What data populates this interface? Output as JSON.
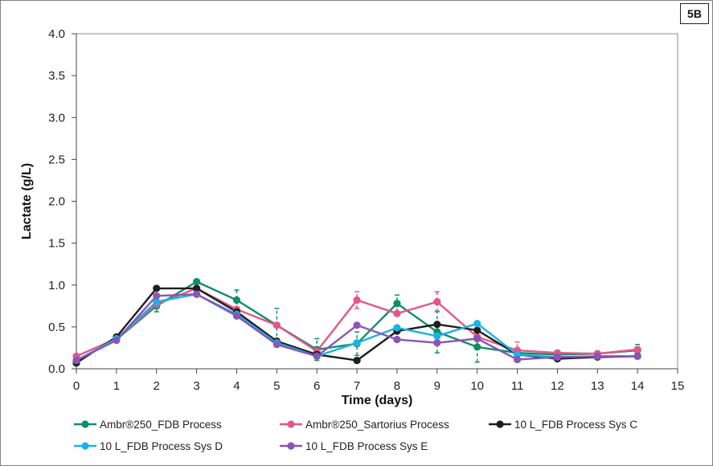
{
  "badge": "5B",
  "chart_data": {
    "type": "line",
    "xlabel": "Time (days)",
    "ylabel": "Lactate (g/L)",
    "xlim": [
      0,
      15
    ],
    "ylim": [
      0,
      4.0
    ],
    "x_ticks": [
      "0",
      "1",
      "2",
      "3",
      "4",
      "5",
      "6",
      "7",
      "8",
      "9",
      "10",
      "11",
      "12",
      "13",
      "14",
      "15"
    ],
    "y_ticks": [
      "0.0",
      "0.5",
      "1.0",
      "1.5",
      "2.0",
      "2.5",
      "3.0",
      "3.5",
      "4.0"
    ],
    "grid": "none",
    "legend_placement": "bottom",
    "series": [
      {
        "name": "Ambr®250_FDB Process",
        "color": "#0e8f6a",
        "x": [
          0,
          1,
          2,
          3,
          4,
          5,
          6,
          7,
          8,
          9,
          10,
          11,
          12,
          13,
          14
        ],
        "y": [
          0.1,
          0.35,
          0.75,
          1.04,
          0.82,
          0.52,
          0.23,
          0.3,
          0.78,
          0.44,
          0.26,
          0.19,
          0.17,
          0.18,
          0.22
        ],
        "err": [
          0,
          0,
          0.07,
          0,
          0.12,
          0.2,
          0.13,
          0.14,
          0.1,
          0.25,
          0.18,
          0,
          0,
          0,
          0.07
        ]
      },
      {
        "name": "Ambr®250_Sartorius Process",
        "color": "#e3578a",
        "x": [
          0,
          1,
          2,
          3,
          4,
          5,
          6,
          7,
          8,
          9,
          10,
          11,
          12,
          13,
          14
        ],
        "y": [
          0.15,
          0.36,
          0.77,
          0.96,
          0.71,
          0.52,
          0.21,
          0.82,
          0.66,
          0.8,
          0.38,
          0.22,
          0.19,
          0.18,
          0.23
        ],
        "err": [
          0,
          0,
          0,
          0,
          0,
          0,
          0,
          0.1,
          0,
          0.12,
          0,
          0.1,
          0,
          0,
          0
        ]
      },
      {
        "name": "10 L_FDB Process Sys C",
        "color": "#1e1e1e",
        "x": [
          0,
          1,
          2,
          3,
          4,
          5,
          6,
          7,
          8,
          9,
          10,
          11,
          12,
          13,
          14
        ],
        "y": [
          0.07,
          0.38,
          0.96,
          0.96,
          0.68,
          0.33,
          0.17,
          0.1,
          0.45,
          0.53,
          0.46,
          0.17,
          0.12,
          0.14,
          0.15
        ],
        "err": [
          0,
          0,
          0,
          0,
          0,
          0,
          0,
          0,
          0,
          0,
          0,
          0,
          0,
          0,
          0
        ]
      },
      {
        "name": "10 L_FDB Process Sys D",
        "color": "#1ab3e6",
        "x": [
          0,
          1,
          2,
          3,
          4,
          5,
          6,
          7,
          8,
          9,
          10,
          11,
          12,
          13,
          14
        ],
        "y": [
          0.1,
          0.36,
          0.8,
          0.89,
          0.65,
          0.31,
          0.15,
          0.31,
          0.49,
          0.39,
          0.54,
          0.17,
          0.14,
          0.15,
          0.15
        ],
        "err": [
          0,
          0,
          0,
          0,
          0,
          0,
          0,
          0,
          0,
          0,
          0,
          0,
          0,
          0,
          0
        ]
      },
      {
        "name": "10 L_FDB Process Sys E",
        "color": "#8a55b5",
        "x": [
          0,
          1,
          2,
          3,
          4,
          5,
          6,
          7,
          8,
          9,
          10,
          11,
          12,
          13,
          14
        ],
        "y": [
          0.1,
          0.34,
          0.87,
          0.89,
          0.63,
          0.29,
          0.15,
          0.52,
          0.35,
          0.31,
          0.36,
          0.11,
          0.14,
          0.15,
          0.15
        ],
        "err": [
          0,
          0,
          0,
          0,
          0,
          0,
          0,
          0,
          0,
          0,
          0,
          0,
          0,
          0,
          0
        ]
      }
    ]
  }
}
